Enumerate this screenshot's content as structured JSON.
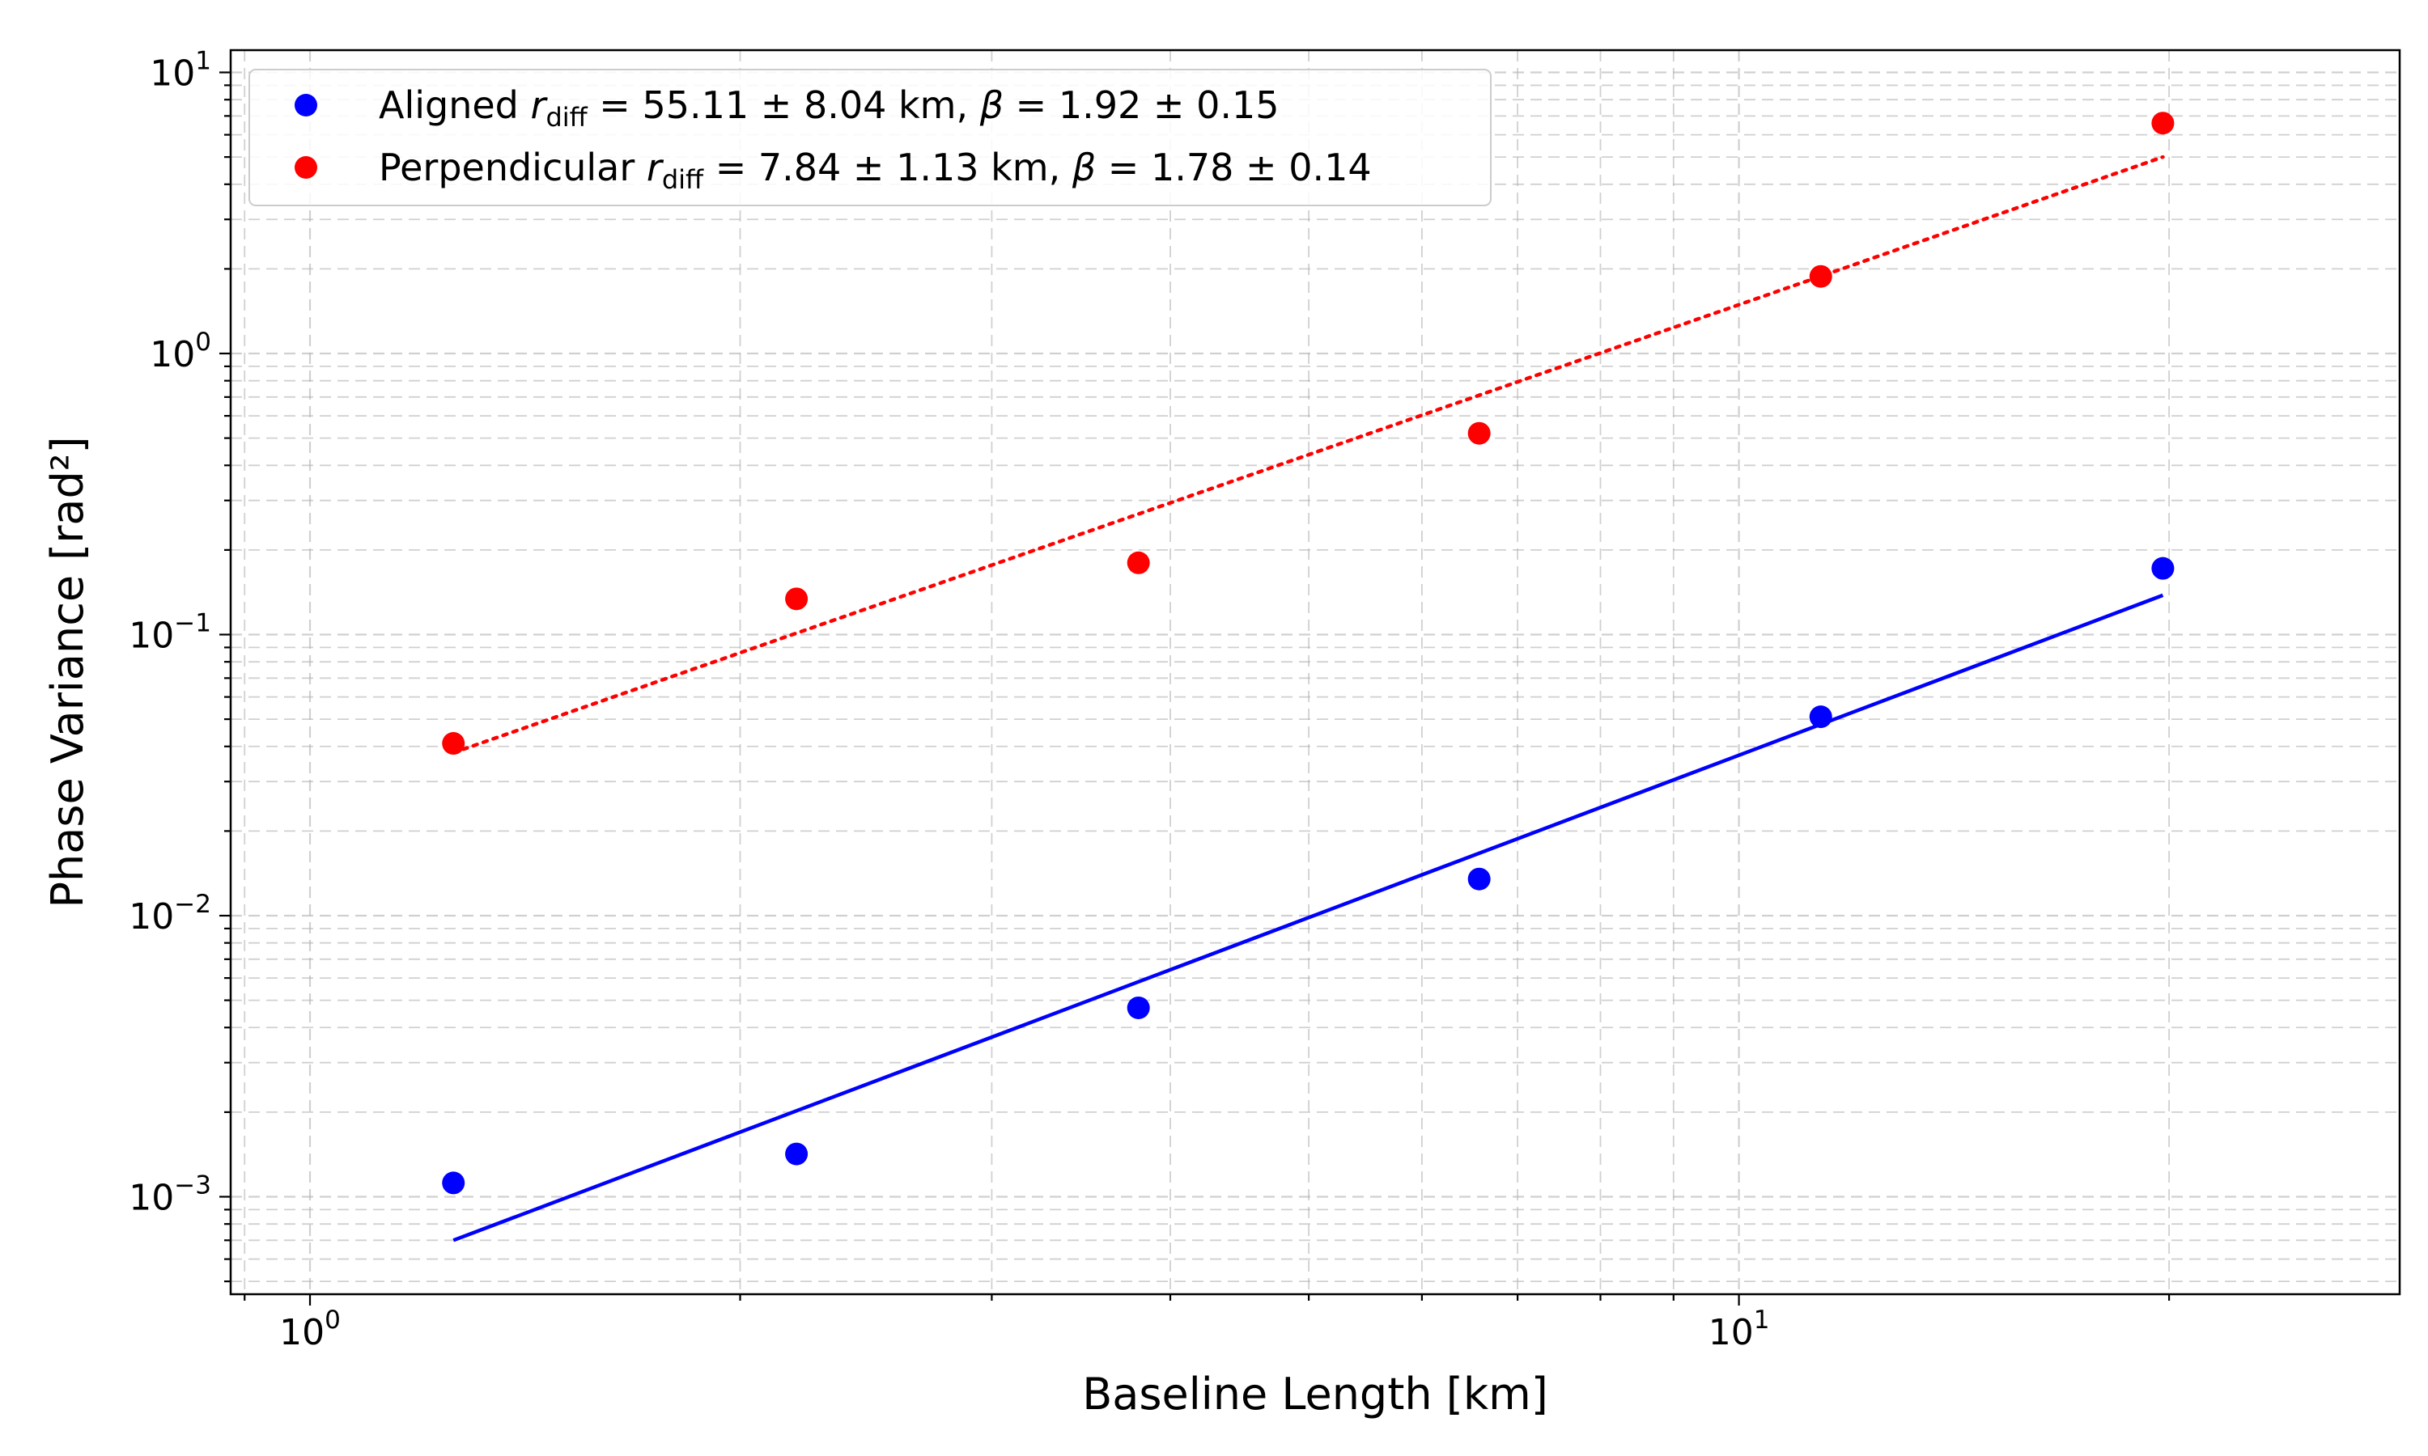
{
  "chart_data": {
    "type": "scatter",
    "xlabel": "Baseline Length [km]",
    "ylabel": "Phase Variance",
    "ylabel_unit": "[rad²]",
    "xscale": "log",
    "yscale": "log",
    "xlim": [
      0.88,
      29
    ],
    "ylim": [
      0.00045,
      12
    ],
    "grid": true,
    "legend_position": "upper-left",
    "x_ticks": [
      {
        "value": 1,
        "label": "10",
        "exp": "0"
      },
      {
        "value": 10,
        "label": "10",
        "exp": "1"
      }
    ],
    "y_ticks": [
      {
        "value": 0.001,
        "label": "10",
        "exp": "−3"
      },
      {
        "value": 0.01,
        "label": "10",
        "exp": "−2"
      },
      {
        "value": 0.1,
        "label": "10",
        "exp": "−1"
      },
      {
        "value": 1,
        "label": "10",
        "exp": "0"
      },
      {
        "value": 10,
        "label": "10",
        "exp": "1"
      }
    ],
    "series": [
      {
        "name": "Aligned",
        "legend": {
          "prefix": "Aligned ",
          "r_value": "55.11 ± 8.04 km",
          "beta_value": "1.92 ± 0.15"
        },
        "color": "#0000ff",
        "x": [
          1.26,
          2.19,
          3.8,
          6.58,
          11.41,
          19.8
        ],
        "y": [
          0.00112,
          0.00142,
          0.0047,
          0.0135,
          0.051,
          0.172
        ],
        "fit": {
          "style": "solid",
          "x": [
            1.26,
            19.8
          ],
          "y": [
            0.0007,
            0.138
          ]
        }
      },
      {
        "name": "Perpendicular",
        "legend": {
          "prefix": "Perpendicular ",
          "r_value": "7.84 ± 1.13 km",
          "beta_value": "1.78 ± 0.14"
        },
        "color": "#ff0000",
        "x": [
          1.26,
          2.19,
          3.8,
          6.58,
          11.41,
          19.8
        ],
        "y": [
          0.041,
          0.134,
          0.18,
          0.52,
          1.88,
          6.6
        ],
        "fit": {
          "style": "dotted",
          "x": [
            1.26,
            19.8
          ],
          "y": [
            0.038,
            5.0
          ]
        }
      }
    ]
  }
}
